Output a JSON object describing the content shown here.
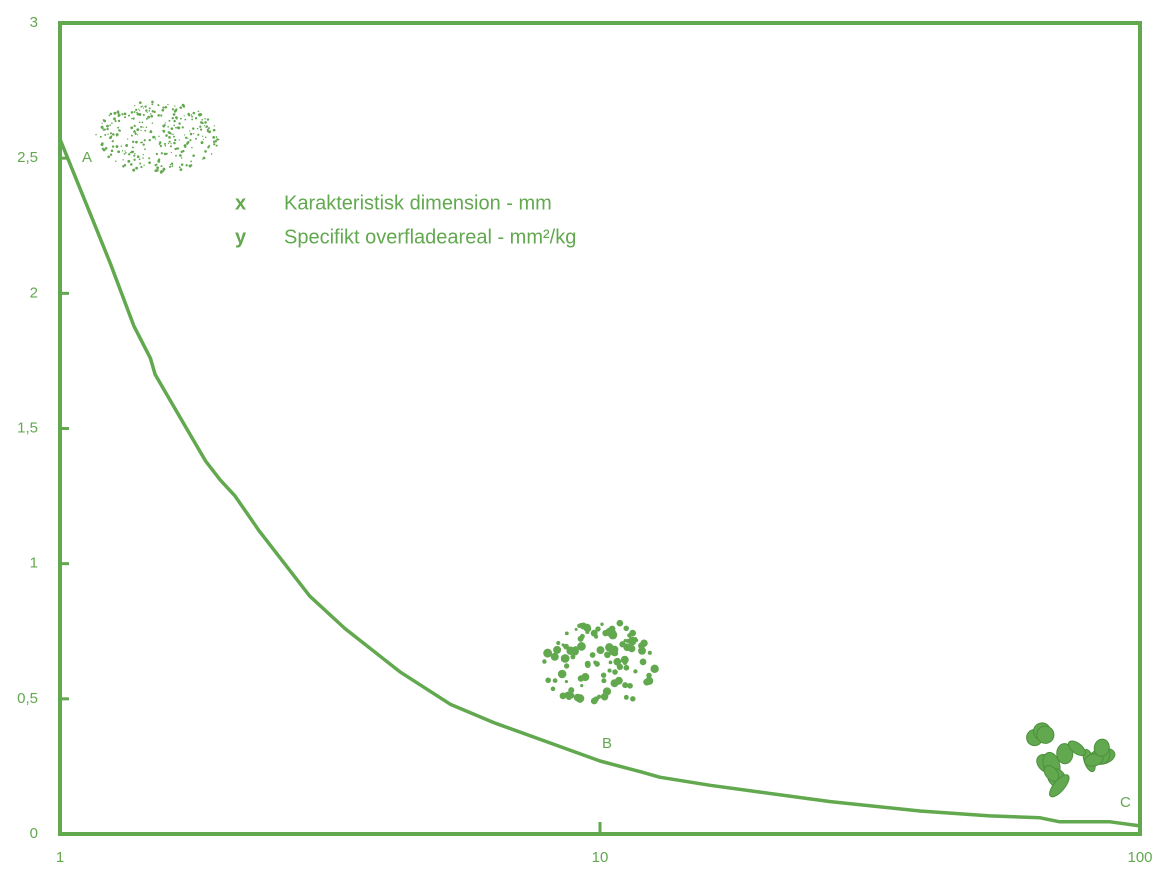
{
  "chart_data": {
    "type": "line",
    "xlabel_key": "x",
    "xlabel": "Karakteristisk dimension - mm",
    "ylabel_key": "y",
    "ylabel": "Specifikt overfladeareal - mm²/kg",
    "log_x": true,
    "grid": false,
    "color": "#62a84f",
    "xlim": [
      1,
      100
    ],
    "xticks": [
      1,
      10,
      100
    ],
    "ylim": [
      0,
      3
    ],
    "yticks": [
      0,
      {
        "value": 0.5,
        "label": "0,5"
      },
      1,
      {
        "value": 1.5,
        "label": "1,5"
      },
      2,
      {
        "value": 2.5,
        "label": "2,5"
      },
      3
    ],
    "x": [
      1,
      1.14,
      1.24,
      1.37,
      1.47,
      1.5,
      1.67,
      1.86,
      1.98,
      2.11,
      2.34,
      2.9,
      3.37,
      4.26,
      5.28,
      6.4,
      10,
      11.9,
      12.9,
      16,
      19.8,
      26.7,
      39.1,
      52.7,
      65.3,
      71,
      88,
      100
    ],
    "series": [
      {
        "values": [
          2.57,
          2.29,
          2.11,
          1.88,
          1.76,
          1.7,
          1.54,
          1.38,
          1.31,
          1.25,
          1.12,
          0.88,
          0.76,
          0.6,
          0.48,
          0.41,
          0.27,
          0.23,
          0.21,
          0.18,
          0.155,
          0.12,
          0.085,
          0.067,
          0.06,
          0.045,
          0.045,
          0.03
        ]
      }
    ],
    "annotations": [
      "A",
      "B",
      "C"
    ]
  }
}
